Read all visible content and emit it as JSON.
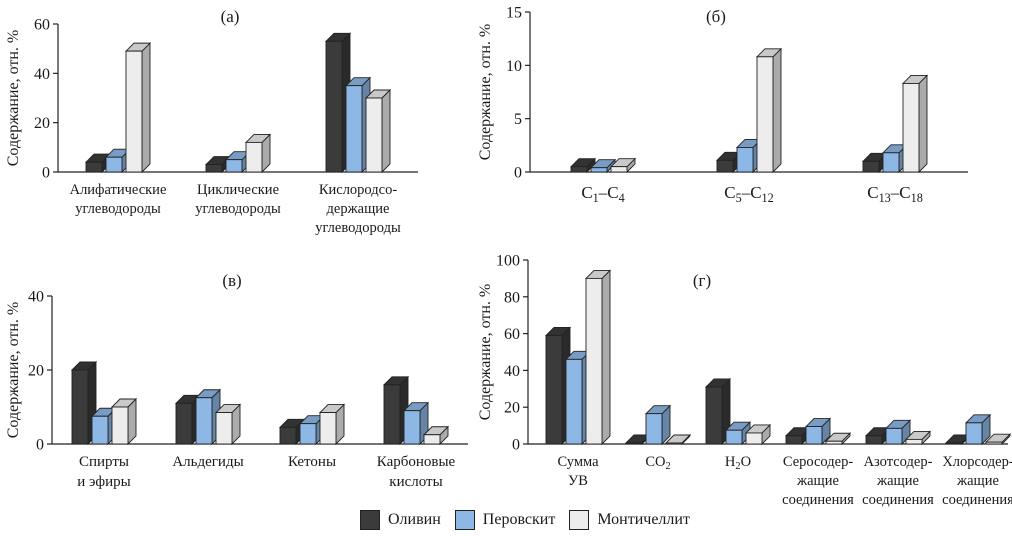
{
  "legend": {
    "olivine": "Оливин",
    "perovskite": "Перовскит",
    "monticellite": "Монтичеллит"
  },
  "colors": {
    "olivine": "#3b3b3b",
    "perovskite": "#8db8e6",
    "monticellite": "#ededed"
  },
  "chart_data": [
    {
      "type": "bar",
      "panel": "(а)",
      "ylabel": "Содержание, отн. %",
      "ylim": [
        0,
        60
      ],
      "yticks": [
        "0",
        "20",
        "40",
        "60"
      ],
      "categories": [
        [
          "Алифатические",
          "углеводороды"
        ],
        [
          "Циклические",
          "углеводороды"
        ],
        [
          "Кислородсо-",
          "держащие",
          "углеводороды"
        ]
      ],
      "series": [
        {
          "name": "Оливин",
          "values": [
            4,
            3,
            53
          ]
        },
        {
          "name": "Перовскит",
          "values": [
            6,
            5,
            35
          ]
        },
        {
          "name": "Монтичеллит",
          "values": [
            49,
            12,
            30
          ]
        }
      ]
    },
    {
      "type": "bar",
      "panel": "(б)",
      "ylabel": "Содержание, отн. %",
      "ylim": [
        0,
        15
      ],
      "yticks": [
        "0",
        "5",
        "10",
        "15"
      ],
      "categories": [
        [
          [
            "C",
            ""
          ],
          [
            "1",
            "sub"
          ],
          [
            "–C",
            ""
          ],
          [
            "4",
            "sub"
          ]
        ],
        [
          [
            "C",
            ""
          ],
          [
            "5",
            "sub"
          ],
          [
            "–C",
            ""
          ],
          [
            "12",
            "sub"
          ]
        ],
        [
          [
            "C",
            ""
          ],
          [
            "13",
            "sub"
          ],
          [
            "–C",
            ""
          ],
          [
            "18",
            "sub"
          ]
        ]
      ],
      "series": [
        {
          "name": "Оливин",
          "values": [
            0.5,
            1.1,
            1.0
          ]
        },
        {
          "name": "Перовскит",
          "values": [
            0.4,
            2.3,
            1.8
          ]
        },
        {
          "name": "Монтичеллит",
          "values": [
            0.5,
            10.8,
            8.3
          ]
        }
      ]
    },
    {
      "type": "bar",
      "panel": "(в)",
      "ylabel": "Содержание, отн. %",
      "ylim": [
        0,
        40
      ],
      "yticks": [
        "0",
        "20",
        "40"
      ],
      "categories": [
        [
          "Спирты",
          "и эфиры"
        ],
        [
          "Альдегиды"
        ],
        [
          "Кетоны"
        ],
        [
          "Карбоновые",
          "кислоты"
        ]
      ],
      "series": [
        {
          "name": "Оливин",
          "values": [
            20,
            11,
            4.5,
            16
          ]
        },
        {
          "name": "Перовскит",
          "values": [
            7.5,
            12.5,
            5.5,
            9
          ]
        },
        {
          "name": "Монтичеллит",
          "values": [
            10,
            8.5,
            8.5,
            2.5
          ]
        }
      ]
    },
    {
      "type": "bar",
      "panel": "(г)",
      "ylabel": "Содержание, отн. %",
      "ylim": [
        0,
        100
      ],
      "yticks": [
        "0",
        "20",
        "40",
        "60",
        "80",
        "100"
      ],
      "categories": [
        [
          "Сумма",
          "УВ"
        ],
        [
          [
            [
              "CO",
              ""
            ],
            [
              "2",
              "sub"
            ]
          ]
        ],
        [
          [
            [
              "H",
              ""
            ],
            [
              "2",
              "sub"
            ],
            [
              "O",
              ""
            ]
          ]
        ],
        [
          "Серосодер-",
          "жащие",
          "соединения"
        ],
        [
          "Азотсодер-",
          "жащие",
          "соединения"
        ],
        [
          "Хлорсодер-",
          "жащие",
          "соединения"
        ]
      ],
      "series": [
        {
          "name": "Оливин",
          "values": [
            59,
            0.5,
            31,
            4.5,
            4.5,
            0.5
          ]
        },
        {
          "name": "Перовскит",
          "values": [
            46,
            16.5,
            7.5,
            9.5,
            8.5,
            11.5
          ]
        },
        {
          "name": "Монтичеллит",
          "values": [
            90,
            0.5,
            6,
            1.5,
            2.5,
            1
          ]
        }
      ]
    }
  ]
}
